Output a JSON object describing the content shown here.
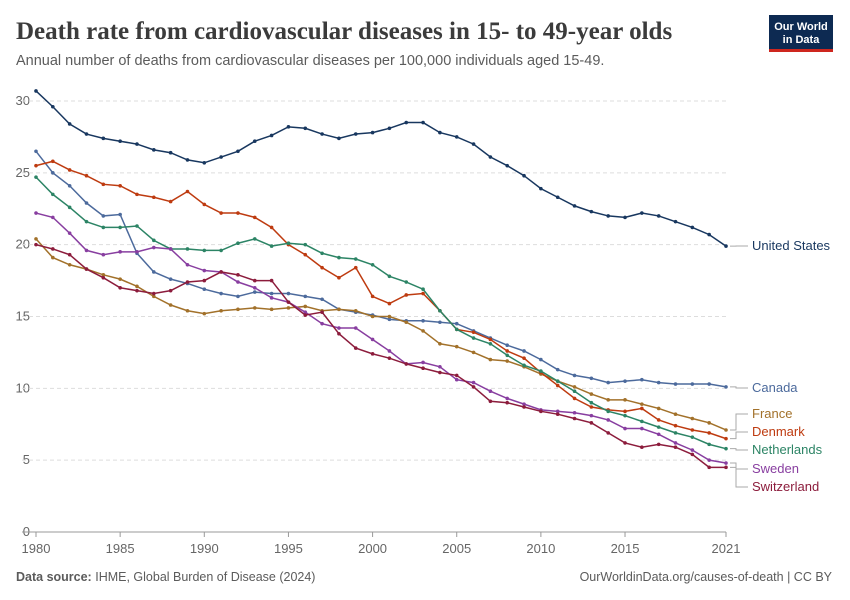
{
  "chart_data": {
    "type": "line",
    "title": "Death rate from cardiovascular diseases in 15- to 49-year olds",
    "subtitle": "Annual number of deaths from cardiovascular diseases per 100,000 individuals aged 15-49.",
    "source_label": "Data source:",
    "source": "IHME, Global Burden of Disease (2024)",
    "url": "OurWorldinData.org/causes-of-death | CC BY",
    "logo": [
      "Our World",
      "in Data"
    ],
    "x": [
      1980,
      1981,
      1982,
      1983,
      1984,
      1985,
      1986,
      1987,
      1988,
      1989,
      1990,
      1991,
      1992,
      1993,
      1994,
      1995,
      1996,
      1997,
      1998,
      1999,
      2000,
      2001,
      2002,
      2003,
      2004,
      2005,
      2006,
      2007,
      2008,
      2009,
      2010,
      2011,
      2012,
      2013,
      2014,
      2015,
      2016,
      2017,
      2018,
      2019,
      2020,
      2021
    ],
    "xlim": [
      1980,
      2021
    ],
    "xticks": [
      1980,
      1985,
      1990,
      1995,
      2000,
      2005,
      2010,
      2015,
      2021
    ],
    "ylim": [
      0,
      30
    ],
    "yticks": [
      0,
      5,
      10,
      15,
      20,
      25,
      30
    ],
    "grid": true,
    "series": [
      {
        "name": "United States",
        "color": "#18375f",
        "values": [
          30.7,
          29.6,
          28.4,
          27.7,
          27.4,
          27.2,
          27.0,
          26.6,
          26.4,
          25.9,
          25.7,
          26.1,
          26.5,
          27.2,
          27.6,
          28.2,
          28.1,
          27.7,
          27.4,
          27.7,
          27.8,
          28.1,
          28.5,
          28.5,
          27.8,
          27.5,
          27.0,
          26.1,
          25.5,
          24.8,
          23.9,
          23.3,
          22.7,
          22.3,
          22.0,
          21.9,
          22.2,
          22.0,
          21.6,
          21.2,
          20.7,
          19.9
        ]
      },
      {
        "name": "Canada",
        "color": "#4c6a9c",
        "values": [
          26.5,
          25.0,
          24.1,
          22.9,
          22.0,
          22.1,
          19.4,
          18.1,
          17.6,
          17.3,
          16.9,
          16.6,
          16.4,
          16.7,
          16.6,
          16.6,
          16.4,
          16.2,
          15.5,
          15.3,
          15.1,
          14.8,
          14.7,
          14.7,
          14.6,
          14.5,
          14.0,
          13.5,
          13.0,
          12.6,
          12.0,
          11.3,
          10.9,
          10.7,
          10.4,
          10.5,
          10.6,
          10.4,
          10.3,
          10.3,
          10.3,
          10.1
        ]
      },
      {
        "name": "France",
        "color": "#a2712a",
        "values": [
          20.4,
          19.1,
          18.6,
          18.3,
          17.9,
          17.6,
          17.1,
          16.4,
          15.8,
          15.4,
          15.2,
          15.4,
          15.5,
          15.6,
          15.5,
          15.6,
          15.7,
          15.4,
          15.5,
          15.4,
          15.0,
          15.0,
          14.6,
          14.0,
          13.1,
          12.9,
          12.5,
          12.0,
          11.9,
          11.5,
          11.0,
          10.5,
          10.1,
          9.6,
          9.2,
          9.2,
          8.9,
          8.6,
          8.2,
          7.9,
          7.6,
          7.1
        ]
      },
      {
        "name": "Denmark",
        "color": "#be3b10",
        "values": [
          25.5,
          25.8,
          25.2,
          24.8,
          24.2,
          24.1,
          23.5,
          23.3,
          23.0,
          23.7,
          22.8,
          22.2,
          22.2,
          21.9,
          21.2,
          20.0,
          19.3,
          18.4,
          17.7,
          18.4,
          16.4,
          15.9,
          16.5,
          16.6,
          15.4,
          14.1,
          13.9,
          13.4,
          12.6,
          12.1,
          11.1,
          10.2,
          9.3,
          8.7,
          8.5,
          8.4,
          8.6,
          7.8,
          7.4,
          7.1,
          6.9,
          6.5
        ]
      },
      {
        "name": "Netherlands",
        "color": "#2c8465",
        "values": [
          24.7,
          23.5,
          22.6,
          21.6,
          21.2,
          21.2,
          21.3,
          20.3,
          19.7,
          19.7,
          19.6,
          19.6,
          20.1,
          20.4,
          19.9,
          20.1,
          20.0,
          19.4,
          19.1,
          19.0,
          18.6,
          17.8,
          17.4,
          16.9,
          15.4,
          14.1,
          13.5,
          13.1,
          12.3,
          11.6,
          11.2,
          10.5,
          9.8,
          9.0,
          8.4,
          8.1,
          7.7,
          7.3,
          6.9,
          6.6,
          6.1,
          5.8
        ]
      },
      {
        "name": "Sweden",
        "color": "#883ea0",
        "values": [
          22.2,
          21.9,
          20.8,
          19.6,
          19.3,
          19.5,
          19.5,
          19.8,
          19.7,
          18.6,
          18.2,
          18.1,
          17.4,
          17.0,
          16.3,
          16.0,
          15.3,
          14.5,
          14.2,
          14.2,
          13.4,
          12.6,
          11.7,
          11.8,
          11.5,
          10.6,
          10.4,
          9.8,
          9.3,
          8.9,
          8.5,
          8.4,
          8.3,
          8.1,
          7.8,
          7.2,
          7.2,
          6.8,
          6.2,
          5.7,
          5.0,
          4.8
        ]
      },
      {
        "name": "Switzerland",
        "color": "#8c1c3c",
        "values": [
          20.0,
          19.7,
          19.3,
          18.3,
          17.7,
          17.0,
          16.8,
          16.6,
          16.8,
          17.4,
          17.5,
          18.1,
          17.9,
          17.5,
          17.5,
          16.0,
          15.1,
          15.3,
          13.8,
          12.8,
          12.4,
          12.1,
          11.7,
          11.4,
          11.1,
          10.9,
          10.1,
          9.1,
          9.0,
          8.7,
          8.4,
          8.2,
          7.9,
          7.6,
          6.9,
          6.2,
          5.9,
          6.1,
          5.9,
          5.4,
          4.5,
          4.5
        ]
      }
    ]
  }
}
